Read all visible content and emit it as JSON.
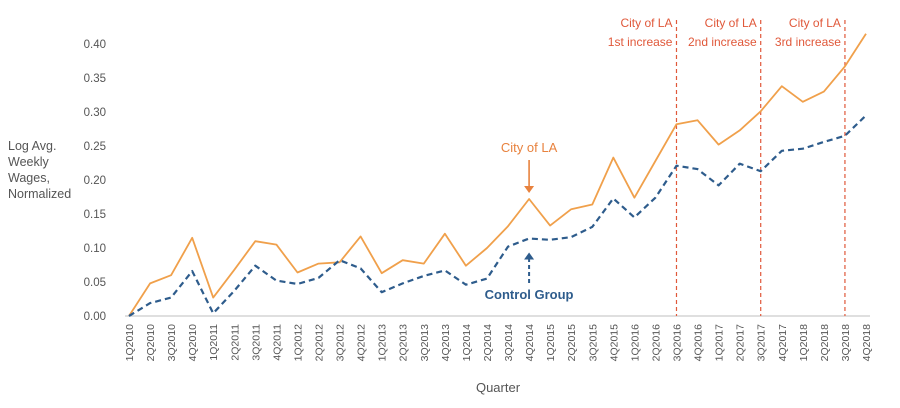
{
  "chart_data": {
    "type": "line",
    "xlabel": "Quarter",
    "ylabel_lines": [
      "Log Avg.",
      "Weekly",
      "Wages,",
      "Normalized"
    ],
    "ylim": [
      0,
      0.42
    ],
    "yticks": [
      "0.00",
      "0.05",
      "0.10",
      "0.15",
      "0.20",
      "0.25",
      "0.30",
      "0.35",
      "0.40"
    ],
    "grid": false,
    "categories": [
      "1Q2010",
      "2Q2010",
      "3Q2010",
      "4Q2010",
      "1Q2011",
      "2Q2011",
      "3Q2011",
      "4Q2011",
      "1Q2012",
      "2Q2012",
      "3Q2012",
      "4Q2012",
      "1Q2013",
      "2Q2013",
      "3Q2013",
      "4Q2013",
      "1Q2014",
      "2Q2014",
      "3Q2014",
      "4Q2014",
      "1Q2015",
      "2Q2015",
      "3Q2015",
      "4Q2015",
      "1Q2016",
      "2Q2016",
      "3Q2016",
      "4Q2016",
      "1Q2017",
      "2Q2017",
      "3Q2017",
      "4Q2017",
      "1Q2018",
      "2Q2018",
      "3Q2018",
      "4Q2018"
    ],
    "series": [
      {
        "name": "City of LA",
        "color": "#f0a04b",
        "style": "solid",
        "values": [
          0.0,
          0.048,
          0.06,
          0.115,
          0.027,
          0.068,
          0.11,
          0.105,
          0.064,
          0.077,
          0.079,
          0.117,
          0.063,
          0.082,
          0.077,
          0.121,
          0.074,
          0.1,
          0.132,
          0.172,
          0.133,
          0.157,
          0.164,
          0.233,
          0.174,
          0.228,
          0.282,
          0.288,
          0.252,
          0.273,
          0.301,
          0.338,
          0.315,
          0.33,
          0.367,
          0.415
        ]
      },
      {
        "name": "Control Group",
        "color": "#2e5c8c",
        "style": "dashed",
        "values": [
          0.0,
          0.019,
          0.027,
          0.066,
          0.004,
          0.037,
          0.074,
          0.052,
          0.047,
          0.056,
          0.082,
          0.07,
          0.035,
          0.048,
          0.059,
          0.067,
          0.046,
          0.055,
          0.102,
          0.114,
          0.112,
          0.116,
          0.131,
          0.173,
          0.145,
          0.174,
          0.221,
          0.216,
          0.192,
          0.224,
          0.213,
          0.243,
          0.246,
          0.256,
          0.265,
          0.295
        ]
      }
    ],
    "series_labels": [
      {
        "text": "City of LA",
        "color": "#e8823e",
        "category_index": 19,
        "arrow": "down"
      },
      {
        "text": "Control Group",
        "color": "#2e5c8c",
        "category_index": 19,
        "arrow": "up"
      }
    ],
    "annotations": [
      {
        "category": "3Q2016",
        "line1": "City of LA",
        "line2": "1st increase"
      },
      {
        "category": "3Q2017",
        "line1": "City of LA",
        "line2": "2nd increase"
      },
      {
        "category": "3Q2018",
        "line1": "City of LA",
        "line2": "3rd increase"
      }
    ],
    "annotation_color": "#e0583a"
  }
}
